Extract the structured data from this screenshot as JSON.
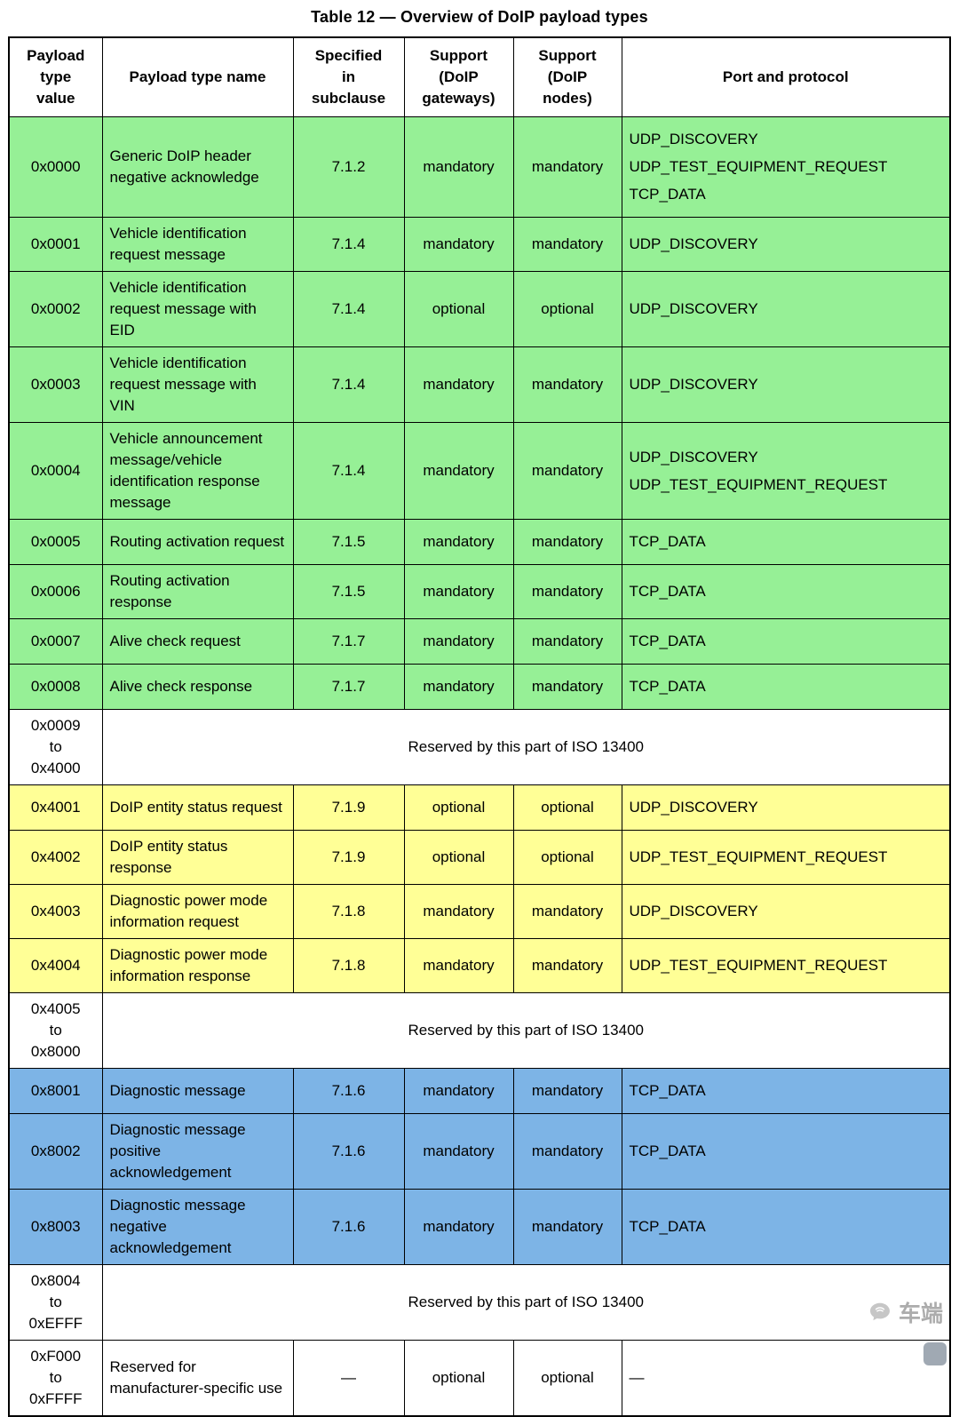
{
  "title": "Table 12 — Overview of DoIP payload types",
  "colors": {
    "green": "#96f096",
    "yellow": "#ffff96",
    "blue": "#7db4e6",
    "white": "#ffffff"
  },
  "watermark": {
    "icon": "wechat-bubble-icon",
    "text": "车端"
  },
  "table": {
    "headers": [
      "Payload\ntype\nvalue",
      "Payload type name",
      "Specified\nin\nsubclause",
      "Support\n(DoIP\ngateways)",
      "Support\n(DoIP\nnodes)",
      "Port and protocol"
    ],
    "rows": [
      {
        "color": "green",
        "value": "0x0000",
        "name": "Generic DoIP header negative acknowledge",
        "subclause": "7.1.2",
        "gateways": "mandatory",
        "nodes": "mandatory",
        "ports": [
          "UDP_DISCOVERY",
          "UDP_TEST_EQUIPMENT_REQUEST",
          "TCP_DATA"
        ]
      },
      {
        "color": "green",
        "value": "0x0001",
        "name": "Vehicle identification request message",
        "subclause": "7.1.4",
        "gateways": "mandatory",
        "nodes": "mandatory",
        "ports": [
          "UDP_DISCOVERY"
        ]
      },
      {
        "color": "green",
        "value": "0x0002",
        "name": "Vehicle identification request message with EID",
        "subclause": "7.1.4",
        "gateways": "optional",
        "nodes": "optional",
        "ports": [
          "UDP_DISCOVERY"
        ]
      },
      {
        "color": "green",
        "value": "0x0003",
        "name": "Vehicle identification request message with VIN",
        "subclause": "7.1.4",
        "gateways": "mandatory",
        "nodes": "mandatory",
        "ports": [
          "UDP_DISCOVERY"
        ]
      },
      {
        "color": "green",
        "value": "0x0004",
        "name": "Vehicle announcement message/vehicle identification response message",
        "subclause": "7.1.4",
        "gateways": "mandatory",
        "nodes": "mandatory",
        "ports": [
          "UDP_DISCOVERY",
          "UDP_TEST_EQUIPMENT_REQUEST"
        ]
      },
      {
        "color": "green",
        "value": "0x0005",
        "name": "Routing activation request",
        "subclause": "7.1.5",
        "gateways": "mandatory",
        "nodes": "mandatory",
        "ports": [
          "TCP_DATA"
        ]
      },
      {
        "color": "green",
        "value": "0x0006",
        "name": "Routing activation response",
        "subclause": "7.1.5",
        "gateways": "mandatory",
        "nodes": "mandatory",
        "ports": [
          "TCP_DATA"
        ]
      },
      {
        "color": "green",
        "value": "0x0007",
        "name": "Alive check request",
        "subclause": "7.1.7",
        "gateways": "mandatory",
        "nodes": "mandatory",
        "ports": [
          "TCP_DATA"
        ]
      },
      {
        "color": "green",
        "value": "0x0008",
        "name": "Alive check response",
        "subclause": "7.1.7",
        "gateways": "mandatory",
        "nodes": "mandatory",
        "ports": [
          "TCP_DATA"
        ]
      },
      {
        "color": "white",
        "value": "0x0009\nto\n0x4000",
        "reserved": "Reserved by this part of ISO 13400"
      },
      {
        "color": "yellow",
        "value": "0x4001",
        "name": "DoIP entity status request",
        "subclause": "7.1.9",
        "gateways": "optional",
        "nodes": "optional",
        "ports": [
          "UDP_DISCOVERY"
        ]
      },
      {
        "color": "yellow",
        "value": "0x4002",
        "name": "DoIP entity status response",
        "subclause": "7.1.9",
        "gateways": "optional",
        "nodes": "optional",
        "ports": [
          "UDP_TEST_EQUIPMENT_REQUEST"
        ]
      },
      {
        "color": "yellow",
        "value": "0x4003",
        "name": "Diagnostic power mode information request",
        "subclause": "7.1.8",
        "gateways": "mandatory",
        "nodes": "mandatory",
        "ports": [
          "UDP_DISCOVERY"
        ]
      },
      {
        "color": "yellow",
        "value": "0x4004",
        "name": "Diagnostic power mode information response",
        "subclause": "7.1.8",
        "gateways": "mandatory",
        "nodes": "mandatory",
        "ports": [
          "UDP_TEST_EQUIPMENT_REQUEST"
        ]
      },
      {
        "color": "white",
        "value": "0x4005\nto\n0x8000",
        "reserved": "Reserved by this part of ISO 13400"
      },
      {
        "color": "blue",
        "value": "0x8001",
        "name": "Diagnostic message",
        "subclause": "7.1.6",
        "gateways": "mandatory",
        "nodes": "mandatory",
        "ports": [
          "TCP_DATA"
        ]
      },
      {
        "color": "blue",
        "value": "0x8002",
        "name": "Diagnostic message positive acknowledgement",
        "subclause": "7.1.6",
        "gateways": "mandatory",
        "nodes": "mandatory",
        "ports": [
          "TCP_DATA"
        ]
      },
      {
        "color": "blue",
        "value": "0x8003",
        "name": "Diagnostic message negative acknowledgement",
        "subclause": "7.1.6",
        "gateways": "mandatory",
        "nodes": "mandatory",
        "ports": [
          "TCP_DATA"
        ]
      },
      {
        "color": "white",
        "value": "0x8004\nto\n0xEFFF",
        "reserved": "Reserved by this part of ISO 13400"
      },
      {
        "color": "white",
        "value": "0xF000\nto\n0xFFFF",
        "name": "Reserved for manufacturer-specific use",
        "subclause": "—",
        "gateways": "optional",
        "nodes": "optional",
        "ports": [
          "—"
        ]
      }
    ]
  }
}
